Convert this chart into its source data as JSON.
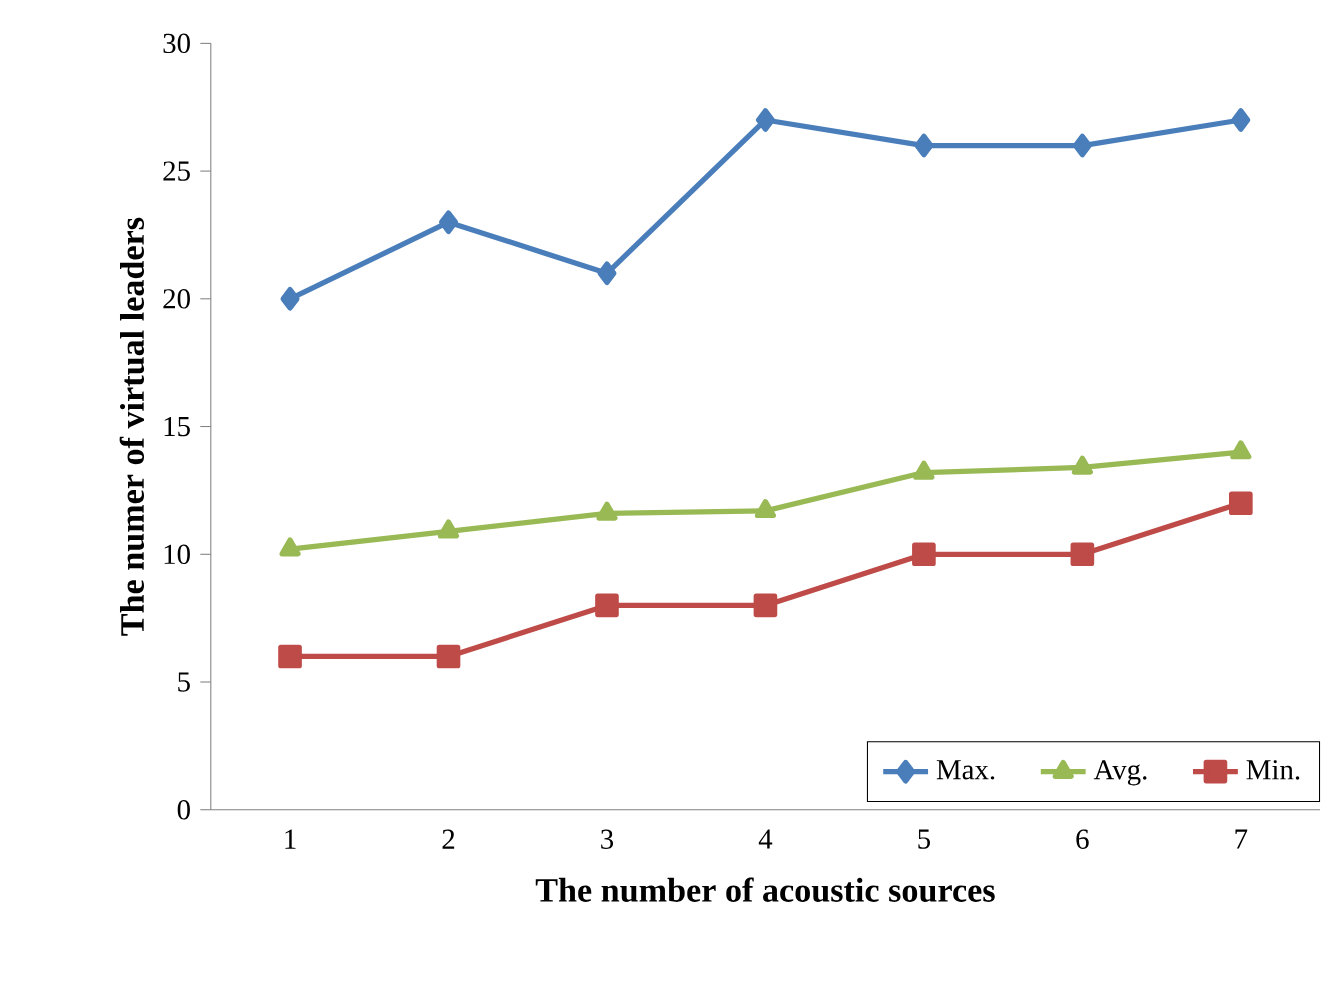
{
  "chart_data": {
    "type": "line",
    "xlabel": "The number of acoustic sources",
    "ylabel": "The numer of virtual leaders",
    "categories": [
      "1",
      "2",
      "3",
      "4",
      "5",
      "6",
      "7"
    ],
    "series": [
      {
        "name": "Max.",
        "color": "#4a7ebb",
        "marker": "diamond",
        "values": [
          20,
          23,
          21,
          27,
          26,
          26,
          27
        ]
      },
      {
        "name": "Avg.",
        "color": "#98b954",
        "marker": "triangle",
        "values": [
          10.2,
          10.9,
          11.6,
          11.7,
          13.2,
          13.4,
          14.0
        ]
      },
      {
        "name": "Min.",
        "color": "#be4b48",
        "marker": "square",
        "values": [
          6,
          6,
          8,
          8,
          10,
          10,
          12
        ]
      }
    ],
    "ylim": [
      0,
      30
    ],
    "yticks": [
      0,
      5,
      10,
      15,
      20,
      25,
      30
    ],
    "grid": false,
    "legend": "bottom right"
  }
}
